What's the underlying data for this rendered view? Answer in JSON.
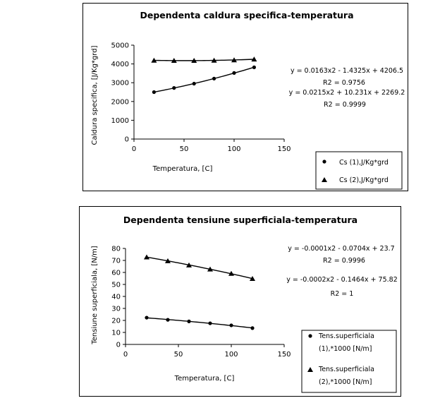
{
  "chart_data": [
    {
      "type": "scatter",
      "title": "Dependenta caldura specifica-temperatura",
      "xlabel": "Temperatura, [C]",
      "ylabel": "Caldura specifica, [J/Kg*grd]",
      "xlim": [
        0,
        150
      ],
      "ylim": [
        0,
        5000
      ],
      "xticks": [
        0,
        50,
        100,
        150
      ],
      "yticks": [
        0,
        1000,
        2000,
        3000,
        4000,
        5000
      ],
      "grid": false,
      "legend": "bottom-right",
      "series": [
        {
          "name": "Cs (1),J/Kg*grd",
          "marker": "circle",
          "x": [
            20,
            40,
            60,
            80,
            100,
            120
          ],
          "y": [
            2500,
            2720,
            2950,
            3220,
            3520,
            3820
          ]
        },
        {
          "name": "Cs (2),J/Kg*grd",
          "marker": "triangle",
          "x": [
            20,
            40,
            60,
            80,
            100,
            120
          ],
          "y": [
            4190,
            4180,
            4180,
            4190,
            4210,
            4250
          ]
        }
      ],
      "trendlines": [
        {
          "equation": "y = 0.0163x2 - 1.4325x + 4206.5",
          "r2": "R2 = 0.9756"
        },
        {
          "equation": "y = 0.0215x2 + 10.231x + 2269.2",
          "r2": "R2 = 0.9999"
        }
      ]
    },
    {
      "type": "scatter",
      "title": "Dependenta tensiune superficiala-temperatura",
      "xlabel": "Temperatura, [C]",
      "ylabel": "Tensiune superficiala, [N/m]",
      "xlim": [
        0,
        150
      ],
      "ylim": [
        0,
        80
      ],
      "xticks": [
        0,
        50,
        100,
        150
      ],
      "yticks": [
        0,
        10,
        20,
        30,
        40,
        50,
        60,
        70,
        80
      ],
      "grid": false,
      "legend": "bottom-right",
      "series": [
        {
          "name_lines": [
            "Tens.superficiala",
            "(1),*1000 [N/m]"
          ],
          "marker": "circle",
          "x": [
            20,
            40,
            60,
            80,
            100,
            120
          ],
          "y": [
            22.3,
            20.5,
            19.2,
            17.6,
            15.9,
            13.6
          ]
        },
        {
          "name_lines": [
            "Tens.superficiala",
            "(2),*1000 [N/m]"
          ],
          "marker": "triangle",
          "x": [
            20,
            40,
            60,
            80,
            100,
            120
          ],
          "y": [
            72.8,
            69.6,
            66.1,
            62.7,
            59.1,
            54.8
          ]
        }
      ],
      "trendlines": [
        {
          "equation": "y = -0.0001x2 - 0.0704x + 23.7",
          "r2": "R2 = 0.9996"
        },
        {
          "equation": "y = -0.0002x2 - 0.1464x + 75.82",
          "r2": "R2 = 1"
        }
      ]
    }
  ]
}
